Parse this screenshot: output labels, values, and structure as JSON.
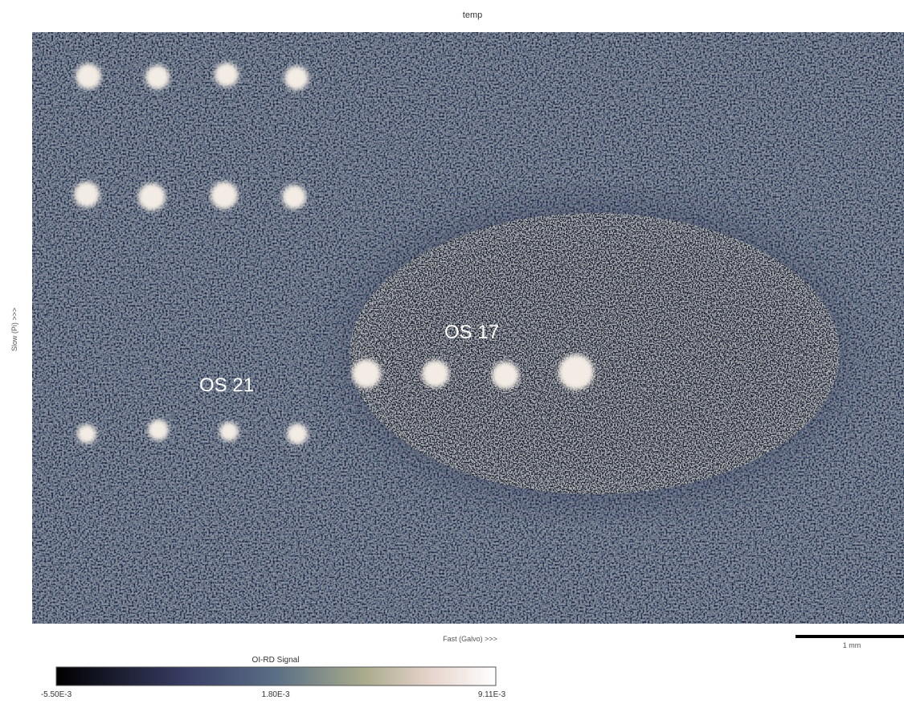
{
  "title": "temp",
  "annotations": [
    "OS 21",
    "OS 17"
  ],
  "axes": {
    "x_label": "Fast (Galvo) >>>",
    "y_label": "Slow (Pi) >>>"
  },
  "scale_bar": {
    "label": "1 mm"
  },
  "colorbar": {
    "title": "OI-RD Signal",
    "tick_labels": [
      "-5.50E-3",
      "1.80E-3",
      "9.11E-3"
    ]
  }
}
